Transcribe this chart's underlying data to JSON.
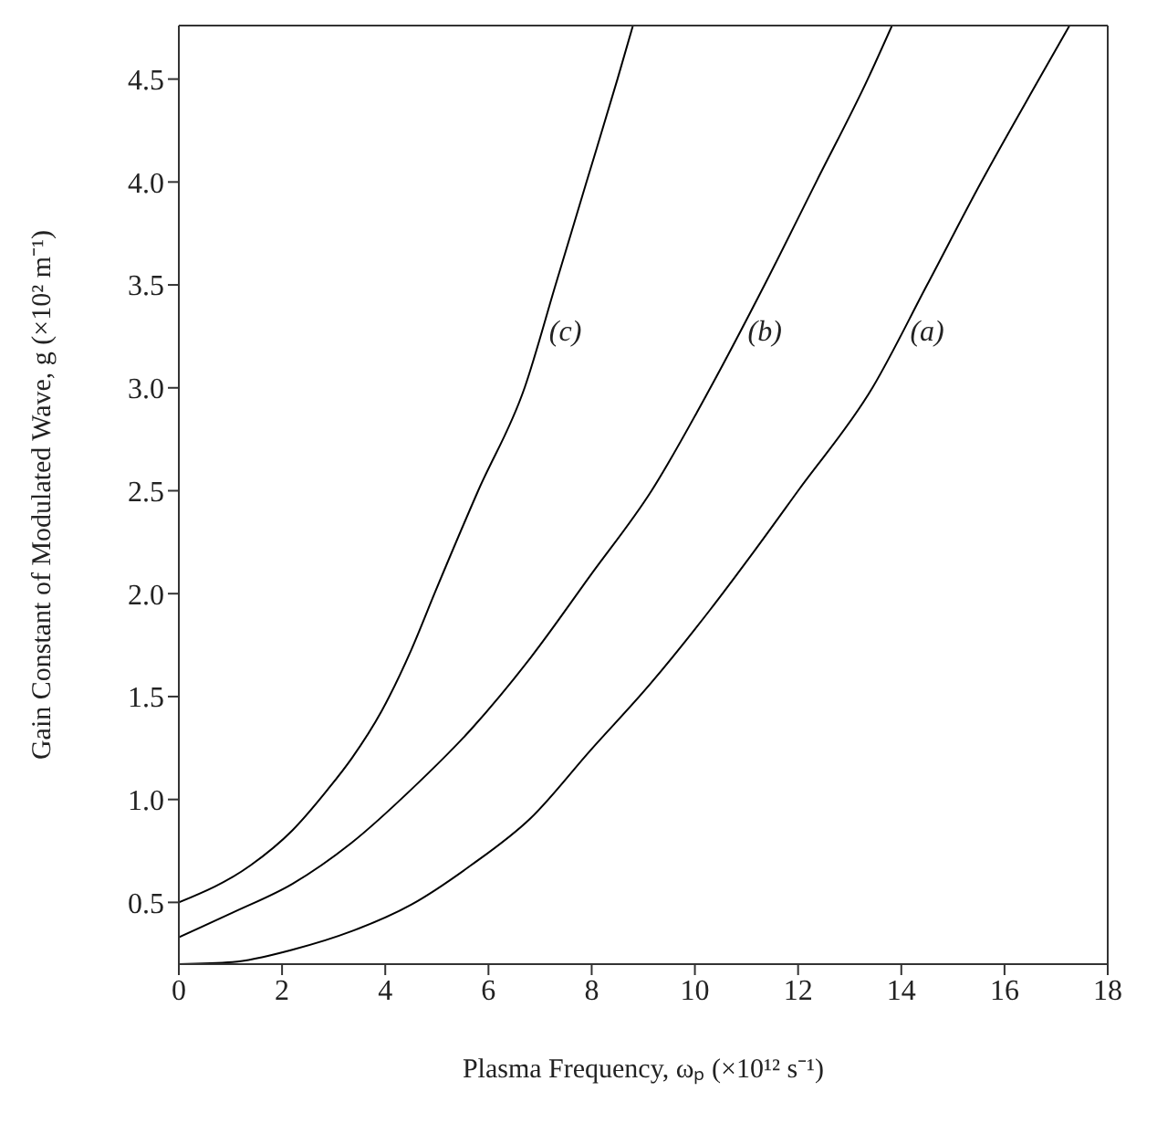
{
  "chart_data": {
    "type": "line",
    "xlabel": "Plasma Frequency, ωₚ (×10¹² s⁻¹)",
    "ylabel": "Gain Constant of Modulated Wave, g (×10² m⁻¹)",
    "series": [
      {
        "name": "(a)",
        "color": "#000000",
        "x": [
          0,
          1.04,
          2.2,
          3.35,
          4.51,
          5.66,
          6.82,
          7.98,
          9.13,
          10.29,
          11.16,
          12.0,
          13.44,
          14.5,
          15.55,
          16.67,
          17.26
        ],
        "values": [
          0.2,
          0.21,
          0.27,
          0.36,
          0.49,
          0.68,
          0.91,
          1.24,
          1.56,
          1.92,
          2.21,
          2.5,
          3.0,
          3.5,
          4.0,
          4.5,
          4.76
        ]
      },
      {
        "name": "(b)",
        "color": "#000000",
        "x": [
          0,
          1.04,
          2.2,
          3.35,
          4.51,
          5.66,
          6.82,
          7.98,
          9.16,
          10.3,
          11.35,
          12.35,
          13.35,
          13.82
        ],
        "values": [
          0.33,
          0.45,
          0.59,
          0.79,
          1.05,
          1.34,
          1.69,
          2.09,
          2.5,
          3.0,
          3.5,
          4.0,
          4.5,
          4.76
        ]
      },
      {
        "name": "(c)",
        "color": "#000000",
        "x": [
          0,
          1.39,
          2.2,
          2.89,
          3.35,
          3.93,
          4.51,
          4.97,
          5.8,
          6.7,
          7.3,
          7.9,
          8.5,
          8.8
        ],
        "values": [
          0.5,
          0.68,
          0.85,
          1.05,
          1.2,
          1.43,
          1.73,
          2.01,
          2.5,
          3.0,
          3.5,
          4.0,
          4.5,
          4.76
        ]
      }
    ],
    "xlim": [
      0,
      18
    ],
    "xticks": [
      0,
      2,
      4,
      6,
      8,
      10,
      12,
      14,
      16,
      18
    ],
    "ylim": [
      0.2,
      4.76
    ],
    "yticks": [
      0.5,
      {
        "value": 1,
        "label": "1.0"
      },
      1.5,
      {
        "value": 2,
        "label": "2.0"
      },
      2.5,
      {
        "value": 3,
        "label": "3.0"
      },
      3.5,
      {
        "value": 4,
        "label": "4.0"
      },
      4.5
    ],
    "grid": false,
    "legend": false,
    "marker": "none",
    "line_style": "solid"
  }
}
